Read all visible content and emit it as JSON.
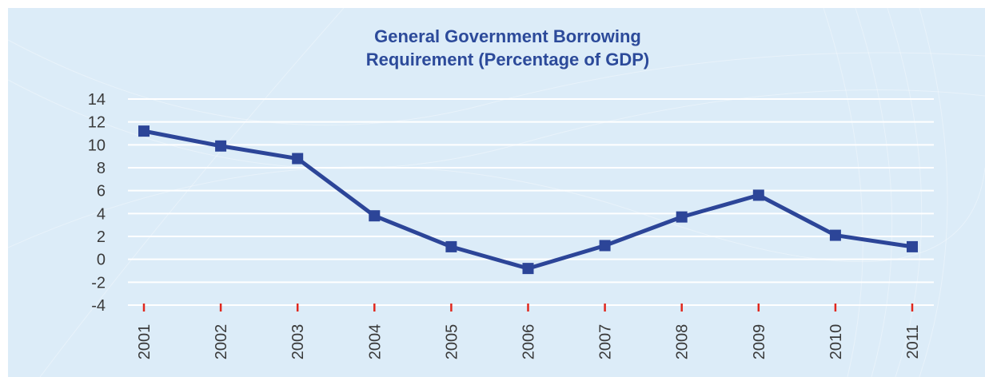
{
  "chart_data": {
    "type": "line",
    "title_lines": [
      "General Government Borrowing",
      "Requirement (Percentage of GDP)"
    ],
    "xlabel": "",
    "ylabel": "",
    "ylim": [
      -4,
      14
    ],
    "yticks": [
      14,
      12,
      10,
      8,
      6,
      4,
      2,
      0,
      -2,
      -4
    ],
    "categories": [
      "2001",
      "2002",
      "2003",
      "2004",
      "2005",
      "2006",
      "2007",
      "2008",
      "2009",
      "2010",
      "2011"
    ],
    "series": [
      {
        "values": [
          11.2,
          9.9,
          8.8,
          3.8,
          1.1,
          -0.8,
          1.2,
          3.7,
          5.6,
          2.1,
          1.1
        ]
      }
    ],
    "grid": true,
    "legend": "none",
    "colors": {
      "line": "#2c4598",
      "marker": "#2c4598",
      "tick_mark": "#e0281e",
      "grid": "#ffffff",
      "background": "#dcecf8",
      "title": "#2c4a9a"
    }
  }
}
